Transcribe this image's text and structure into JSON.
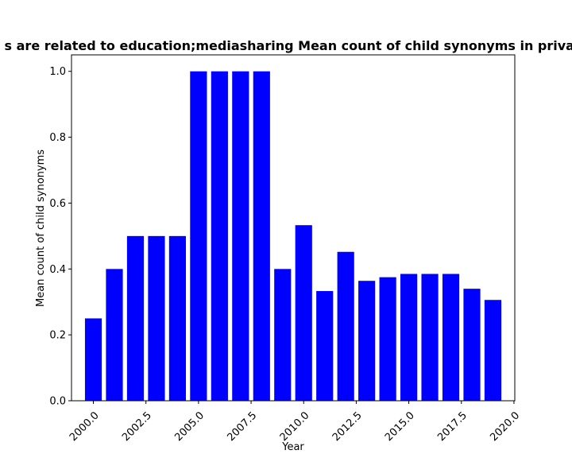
{
  "chart_data": {
    "type": "bar",
    "title": "s are related to education;mediasharing Mean count of child synonyms in privac",
    "xlabel": "Year",
    "ylabel": "Mean count of child synonyms",
    "x": [
      2000,
      2001,
      2002,
      2003,
      2004,
      2005,
      2006,
      2007,
      2008,
      2009,
      2010,
      2011,
      2012,
      2013,
      2014,
      2015,
      2016,
      2017,
      2018,
      2019
    ],
    "values": [
      0.25,
      0.4,
      0.5,
      0.5,
      0.5,
      1.0,
      1.0,
      1.0,
      1.0,
      0.4,
      0.533,
      0.333,
      0.452,
      0.364,
      0.375,
      0.385,
      0.385,
      0.385,
      0.34,
      0.306
    ],
    "xlim": [
      1998.96,
      2020.04
    ],
    "ylim": [
      0,
      1.05
    ],
    "xticks": [
      "2000.0",
      "2002.5",
      "2005.0",
      "2007.5",
      "2010.0",
      "2012.5",
      "2015.0",
      "2017.5",
      "2020.0"
    ],
    "yticks": [
      "0.0",
      "0.2",
      "0.4",
      "0.6",
      "0.8",
      "1.0"
    ],
    "bar_color": "#0000ff",
    "grid": false,
    "legend": "none"
  }
}
